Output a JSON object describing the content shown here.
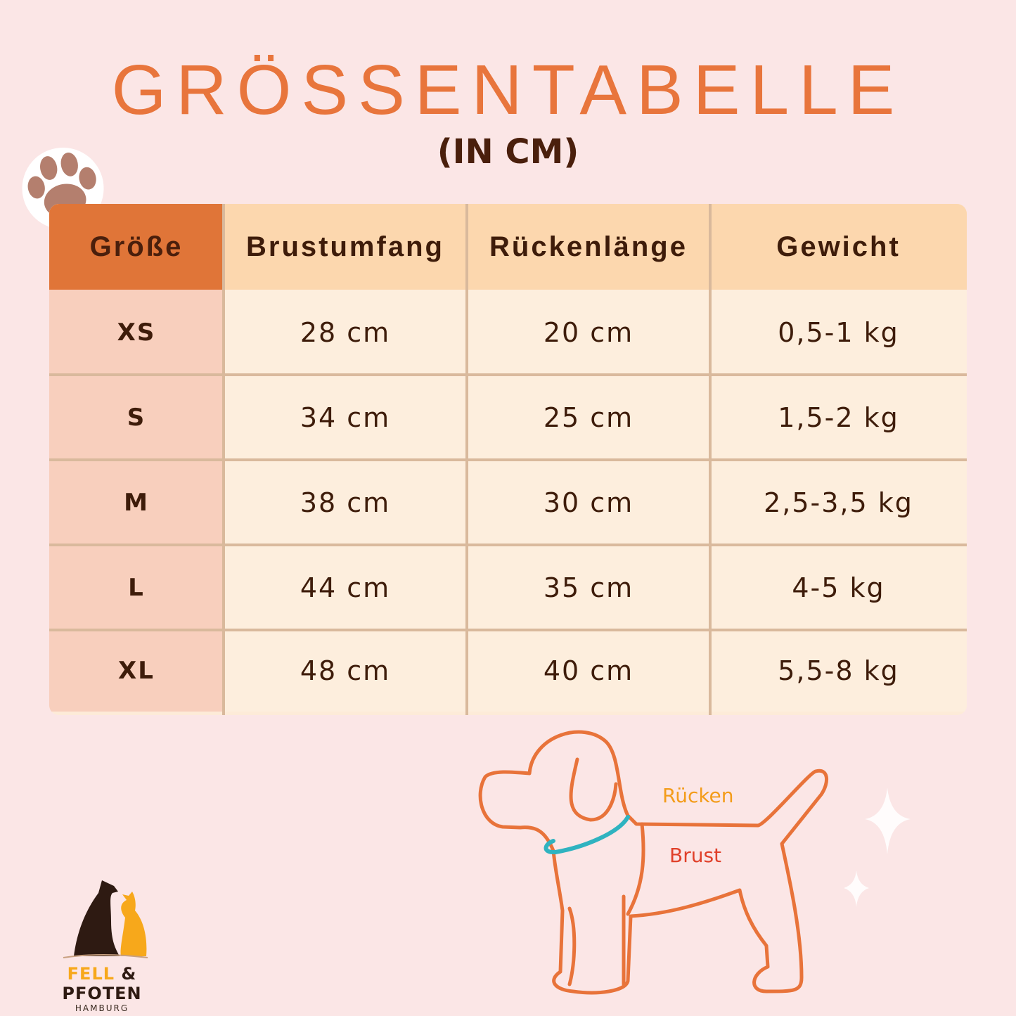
{
  "title": "GRÖSSENTABELLE",
  "subtitle": "(IN CM)",
  "colors": {
    "accent": "#e8753c",
    "text": "#3e1c0a",
    "collar": "#2fb3c0",
    "ruecken": "#f39c1a",
    "brust": "#e0402a"
  },
  "table": {
    "headers": [
      "Größe",
      "Brustumfang",
      "Rückenlänge",
      "Gewicht"
    ],
    "rows": [
      [
        "XS",
        "28 cm",
        "20 cm",
        "0,5-1 kg"
      ],
      [
        "S",
        "34 cm",
        "25 cm",
        "1,5-2 kg"
      ],
      [
        "M",
        "38 cm",
        "30 cm",
        "2,5-3,5 kg"
      ],
      [
        "L",
        "44 cm",
        "35 cm",
        "4-5 kg"
      ],
      [
        "XL",
        "48 cm",
        "40 cm",
        "5,5-8 kg"
      ]
    ]
  },
  "diagram": {
    "ruecken_label": "Rücken",
    "brust_label": "Brust"
  },
  "logo": {
    "part1": "FELL",
    "part2": "& PFOTEN",
    "city": "HAMBURG"
  }
}
